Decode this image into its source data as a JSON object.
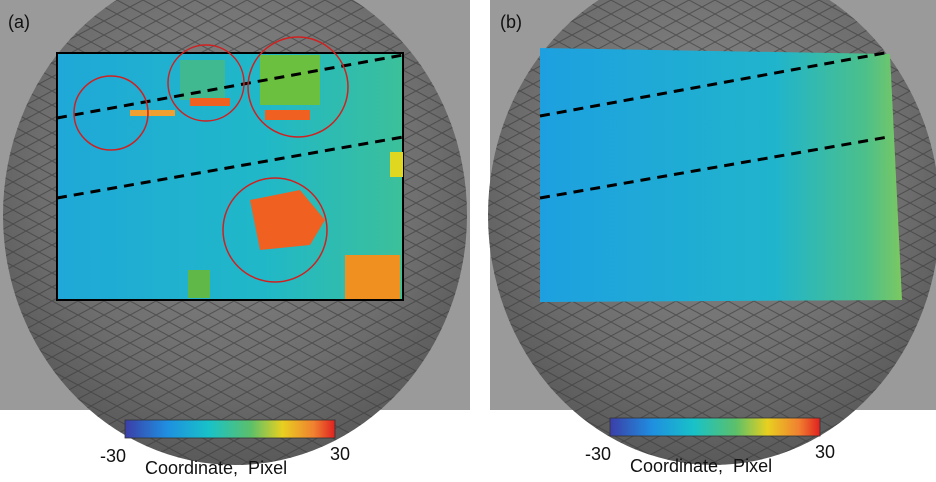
{
  "panels": [
    {
      "label": "(a)",
      "colorbar": {
        "min": -30,
        "max": 30,
        "label": "Coordinate,  Pixel"
      }
    },
    {
      "label": "(b)",
      "colorbar": {
        "min": -30,
        "max": 30,
        "label": "Coordinate,  Pixel"
      }
    }
  ]
}
